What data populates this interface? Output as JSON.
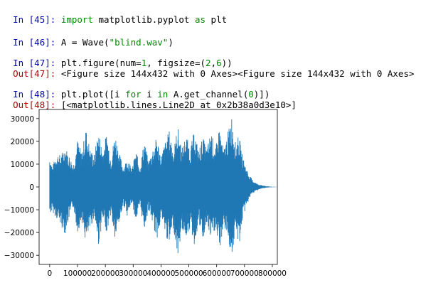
{
  "cells": [
    {
      "prompt": "In [45]:",
      "code": [
        "import",
        " matplotlib.pyplot ",
        "as",
        " plt"
      ]
    },
    {
      "prompt": "In [46]:",
      "code": [
        "A = Wave(",
        "\"blind.wav\"",
        ")"
      ]
    },
    {
      "prompt": "In [47]:",
      "code": [
        "plt.figure(num=",
        "1",
        ", figsize=(",
        "2",
        ",",
        "6",
        "))"
      ],
      "out_prompt": "Out[47]:",
      "output": "<Figure size 144x432 with 0 Axes><Figure size 144x432 with 0 Axes>"
    },
    {
      "prompt": "In [48]:",
      "code": [
        "plt.plot([i ",
        "for",
        " i ",
        "in",
        " A.get_channel(",
        "0",
        ")])"
      ],
      "out_prompt": "Out[48]:",
      "output": "[<matplotlib.lines.Line2D at 0x2b38a0d3e10>]"
    }
  ],
  "chart_data": {
    "type": "line",
    "title": "",
    "xlabel": "",
    "ylabel": "",
    "xlim": [
      -38000,
      818000
    ],
    "ylim": [
      -34000,
      34000
    ],
    "x_ticks": [
      0,
      100000,
      200000,
      300000,
      400000,
      500000,
      600000,
      700000,
      800000
    ],
    "y_ticks": [
      30000,
      20000,
      10000,
      0,
      -10000,
      -20000,
      -30000
    ],
    "series": [
      {
        "color": "#1f77b4",
        "envelope": [
          [
            0,
            14000,
            -12000
          ],
          [
            10000,
            9000,
            -11000
          ],
          [
            25000,
            15000,
            -14000
          ],
          [
            40000,
            14000,
            -17000
          ],
          [
            55000,
            18000,
            -21000
          ],
          [
            70000,
            14000,
            -14000
          ],
          [
            85000,
            10000,
            -9000
          ],
          [
            100000,
            21000,
            -20000
          ],
          [
            115000,
            15000,
            -15000
          ],
          [
            130000,
            26000,
            -25000
          ],
          [
            145000,
            17000,
            -19000
          ],
          [
            160000,
            14000,
            -13000
          ],
          [
            175000,
            25000,
            -26000
          ],
          [
            190000,
            16000,
            -15000
          ],
          [
            205000,
            24000,
            -20000
          ],
          [
            220000,
            13000,
            -12000
          ],
          [
            235000,
            24000,
            -24000
          ],
          [
            250000,
            15000,
            -16000
          ],
          [
            265000,
            9000,
            -8000
          ],
          [
            280000,
            13000,
            -13000
          ],
          [
            295000,
            8000,
            -7000
          ],
          [
            310000,
            16000,
            -15000
          ],
          [
            325000,
            9000,
            -9000
          ],
          [
            340000,
            21000,
            -19000
          ],
          [
            355000,
            11000,
            -10000
          ],
          [
            370000,
            17000,
            -16000
          ],
          [
            385000,
            22000,
            -24000
          ],
          [
            400000,
            14000,
            -13000
          ],
          [
            415000,
            20000,
            -21000
          ],
          [
            430000,
            25000,
            -26000
          ],
          [
            445000,
            16000,
            -18000
          ],
          [
            460000,
            27000,
            -31000
          ],
          [
            475000,
            17000,
            -19000
          ],
          [
            490000,
            23000,
            -22000
          ],
          [
            505000,
            17000,
            -18000
          ],
          [
            520000,
            25000,
            -26000
          ],
          [
            535000,
            16000,
            -16000
          ],
          [
            550000,
            22000,
            -24000
          ],
          [
            565000,
            17000,
            -17000
          ],
          [
            580000,
            25000,
            -24000
          ],
          [
            595000,
            16000,
            -19000
          ],
          [
            610000,
            27000,
            -29000
          ],
          [
            625000,
            16000,
            -17000
          ],
          [
            640000,
            24000,
            -23000
          ],
          [
            655000,
            32000,
            -31000
          ],
          [
            668000,
            19000,
            -19000
          ],
          [
            680000,
            23000,
            -27000
          ],
          [
            692000,
            14000,
            -15000
          ],
          [
            705000,
            9000,
            -9000
          ],
          [
            718000,
            5000,
            -5000
          ],
          [
            730000,
            3000,
            -3000
          ],
          [
            745000,
            1500,
            -1500
          ],
          [
            760000,
            800,
            -800
          ],
          [
            780000,
            300,
            -300
          ],
          [
            800000,
            100,
            -100
          ],
          [
            815000,
            50,
            -50
          ]
        ]
      }
    ]
  }
}
